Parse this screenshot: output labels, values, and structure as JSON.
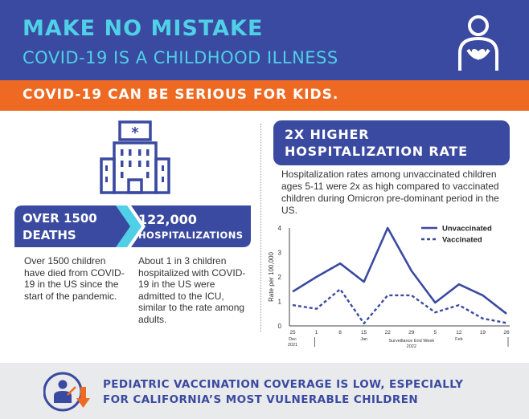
{
  "header": {
    "title": "MAKE NO MISTAKE",
    "subtitle": "COVID-19 IS A CHILDHOOD ILLNESS"
  },
  "banner": {
    "text": "COVID-19 CAN BE SERIOUS FOR KIDS."
  },
  "stats": {
    "deaths_line1": "OVER 1500",
    "deaths_line2": "DEATHS",
    "hosp_number": "122,000",
    "hosp_label": "HOSPITALIZATIONS",
    "deaths_desc": "Over 1500 children have died from COVID-19 in the US since the start of the pandemic.",
    "hosp_desc": "About 1 in 3 children hospitalized with COVID-19 in the US were admitted to the ICU, similar to the rate among adults."
  },
  "chart_section": {
    "title_line1": "2X HIGHER",
    "title_line2": "HOSPITALIZATION RATE",
    "description": "Hospitalization rates among unvaccinated children ages 5-11 were 2x as high compared to vaccinated children during Omicron pre-dominant period in the US."
  },
  "chart_data": {
    "type": "line",
    "ylabel": "Rate per 100,000",
    "xlabel": "Surveillance End Week",
    "ylim": [
      0,
      4
    ],
    "yticks": [
      "0",
      "1",
      "2",
      "3",
      "4"
    ],
    "x": [
      "25",
      "1",
      "8",
      "15",
      "22",
      "29",
      "5",
      "12",
      "19",
      "26"
    ],
    "month_labels": [
      {
        "label": "Dec",
        "year": "2021",
        "at": "25"
      },
      {
        "label": "Jan",
        "year": "",
        "at": "15"
      },
      {
        "label": "Feb",
        "year": "",
        "at": "12"
      }
    ],
    "year_2022": "2022",
    "legend_position": "top-right",
    "series": [
      {
        "name": "Unvaccinated",
        "style": "solid",
        "color": "#3a4aa0",
        "values": [
          1.4,
          2.0,
          2.55,
          1.8,
          4.0,
          2.25,
          0.95,
          1.7,
          1.25,
          0.5
        ]
      },
      {
        "name": "Vaccinated",
        "style": "dashed",
        "color": "#3a4aa0",
        "values": [
          0.85,
          0.7,
          1.5,
          0.1,
          1.25,
          1.25,
          0.55,
          0.85,
          0.3,
          0.12
        ]
      }
    ]
  },
  "footer": {
    "line1": "PEDIATRIC VACCINATION COVERAGE IS LOW, ESPECIALLY",
    "line2": "FOR CALIFORNIA’S MOST VULNERABLE CHILDREN"
  },
  "colors": {
    "navy": "#3a4aa0",
    "cyan": "#4fd0e6",
    "orange": "#ee6a22",
    "footer_bg": "#e9eaec"
  },
  "icons": [
    "child-holding-heart-icon",
    "hospital-building-icon",
    "vaccination-person-icon"
  ]
}
